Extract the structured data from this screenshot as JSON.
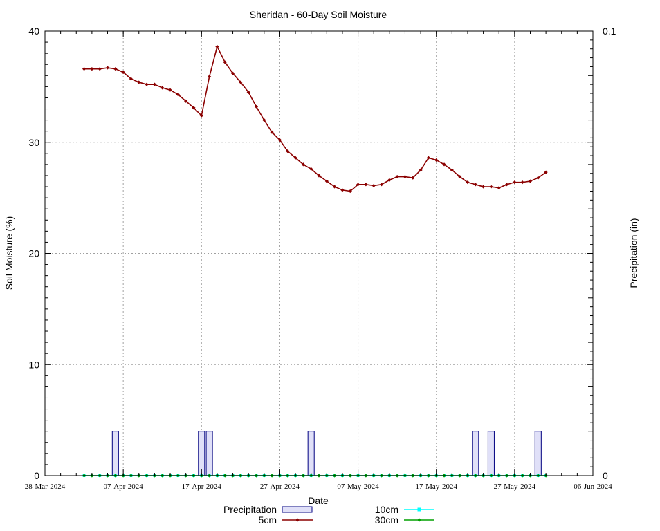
{
  "chart_data": {
    "type": "line",
    "title": "Sheridan - 60-Day Soil Moisture",
    "xlabel": "Date",
    "ylabel": "Soil Moisture (%)",
    "y2label": "Precipitation (in)",
    "ylim": [
      0,
      40
    ],
    "y2lim": [
      0,
      0.1
    ],
    "yticks": [
      "0",
      "10",
      "20",
      "30",
      "40"
    ],
    "y2ticks": [
      "0",
      "0.1"
    ],
    "xlim": [
      "2024-03-28",
      "2024-06-06"
    ],
    "xticks": [
      "28-Mar-2024",
      "07-Apr-2024",
      "17-Apr-2024",
      "27-Apr-2024",
      "07-May-2024",
      "17-May-2024",
      "27-May-2024",
      "06-Jun-2024"
    ],
    "grid": true,
    "legend_position": "bottom-center",
    "series": [
      {
        "name": "5cm",
        "color": "#8b0000",
        "start_date": "2024-04-02",
        "values": [
          36.6,
          36.6,
          36.6,
          36.7,
          36.6,
          36.3,
          35.7,
          35.4,
          35.2,
          35.2,
          34.9,
          34.7,
          34.3,
          33.7,
          33.1,
          32.4,
          35.9,
          38.6,
          37.2,
          36.2,
          35.4,
          34.5,
          33.2,
          32.0,
          30.9,
          30.2,
          29.2,
          28.6,
          28.0,
          27.6,
          27.0,
          26.5,
          26.0,
          25.7,
          25.6,
          26.2,
          26.2,
          26.1,
          26.2,
          26.6,
          26.9,
          26.9,
          26.8,
          27.5,
          28.6,
          28.4,
          28.0,
          27.5,
          26.9,
          26.4,
          26.2,
          26.0,
          26.0,
          25.9,
          26.2,
          26.4,
          26.4,
          26.5,
          26.8,
          27.3
        ]
      },
      {
        "name": "10cm",
        "color": "#00ffff",
        "start_date": "2024-04-02",
        "values": [
          0,
          0,
          0,
          0,
          0,
          0,
          0,
          0,
          0,
          0,
          0,
          0,
          0,
          0,
          0,
          0,
          0,
          0,
          0,
          0,
          0,
          0,
          0,
          0,
          0,
          0,
          0,
          0,
          0,
          0,
          0,
          0,
          0,
          0,
          0,
          0,
          0,
          0,
          0,
          0,
          0,
          0,
          0,
          0,
          0,
          0,
          0,
          0,
          0,
          0,
          0,
          0,
          0,
          0,
          0,
          0,
          0,
          0,
          0,
          0
        ]
      },
      {
        "name": "30cm",
        "color": "#00a000",
        "start_date": "2024-04-02",
        "values": [
          0,
          0,
          0,
          0,
          0,
          0,
          0,
          0,
          0,
          0,
          0,
          0,
          0,
          0,
          0,
          0,
          0,
          0,
          0,
          0,
          0,
          0,
          0,
          0,
          0,
          0,
          0,
          0,
          0,
          0,
          0,
          0,
          0,
          0,
          0,
          0,
          0,
          0,
          0,
          0,
          0,
          0,
          0,
          0,
          0,
          0,
          0,
          0,
          0,
          0,
          0,
          0,
          0,
          0,
          0,
          0,
          0,
          0,
          0,
          0
        ]
      }
    ],
    "precipitation": {
      "name": "Precipitation",
      "color": "#e0e0f8",
      "edge_color": "#000080",
      "dates": [
        "2024-04-06",
        "2024-04-17",
        "2024-04-18",
        "2024-05-01",
        "2024-05-22",
        "2024-05-24",
        "2024-05-30"
      ],
      "values": [
        0.01,
        0.01,
        0.01,
        0.01,
        0.01,
        0.01,
        0.01
      ]
    }
  }
}
